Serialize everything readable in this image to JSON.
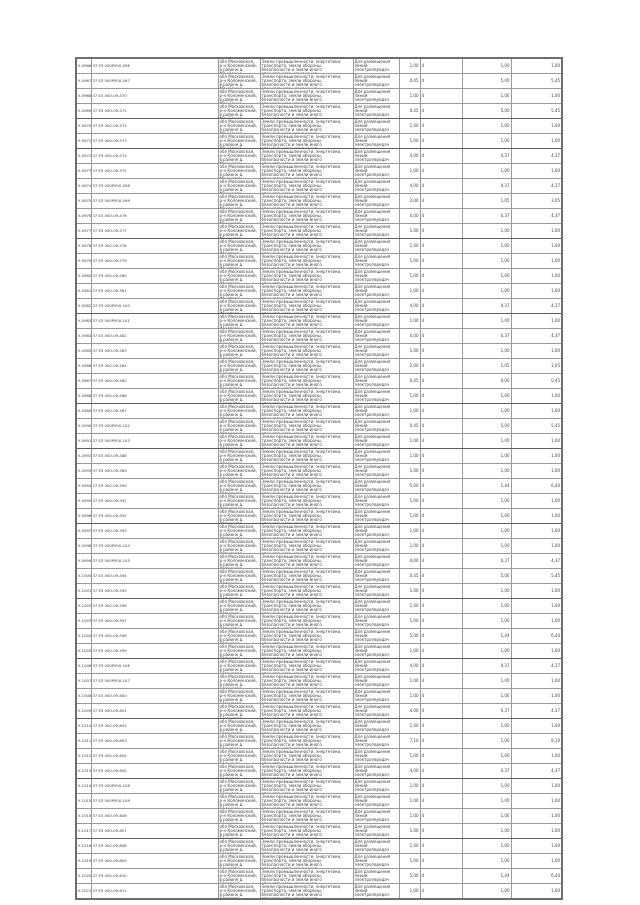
{
  "page": {
    "background": "#ffffff",
    "grid_color": "#9a9a9a",
    "outer_border_color": "#6e6e6e",
    "thick_divider_color": "#b0b0b0",
    "text_color": "#3c3c3c"
  },
  "table": {
    "columns": [
      {
        "key": "id",
        "label": "parcel-id"
      },
      {
        "key": "cn",
        "label": "cadastral-number"
      },
      {
        "key": "addr",
        "label": "location"
      },
      {
        "key": "cat",
        "label": "land-category"
      },
      {
        "key": "purp",
        "label": "permitted-use"
      },
      {
        "key": "n1",
        "label": "area-1"
      },
      {
        "key": "code",
        "label": "code"
      },
      {
        "key": "n2",
        "label": "area-2"
      },
      {
        "key": "n3",
        "label": "area-total"
      }
    ],
    "shared": {
      "address_prefix": "обл Московская, р-н Коломенский, в районе",
      "category": "Земли промышленности, энергетики, транспорта, земли обороны, безопасности и земли иного специального назначения",
      "purpose": "Для размещения линий электропередач"
    },
    "rows": [
      {
        "id": "У-0966",
        "cn": "37 ЕЗ 000РУ00-096",
        "village": "Мещёрино",
        "n1": "1,00",
        "code": "4",
        "n2": "1,00",
        "n3": "1,00",
        "tb": false
      },
      {
        "id": "У-0967",
        "cn": "37 ЕЗ 000РУ00-097",
        "village": "Мещёрино",
        "n1": "0,45",
        "code": "4",
        "n2": "5,00",
        "n3": "5,45",
        "tb": false
      },
      {
        "id": "У-0968",
        "cn": "37 ЕЗ 000-09-570",
        "village": "Мещёрино",
        "n1": "1,00",
        "code": "4",
        "n2": "1,00",
        "n3": "1,00",
        "tb": false
      },
      {
        "id": "У-0969",
        "cn": "37 ЕЗ 000-09-571",
        "village": "Мещёрино",
        "n1": "0,45",
        "code": "4",
        "n2": "5,00",
        "n3": "5,45",
        "tb": true
      },
      {
        "id": "У-0970",
        "cn": "37 ЕЗ 000-09-572",
        "village": "Мещёрино",
        "n1": "1,00",
        "code": "4",
        "n2": "1,00",
        "n3": "1,00",
        "tb": false
      },
      {
        "id": "У-0971",
        "cn": "37 ЕЗ 000-09-573",
        "village": "Мещёрино",
        "n1": "1,00",
        "code": "4",
        "n2": "1,00",
        "n3": "1,00",
        "tb": true
      },
      {
        "id": "У-0972",
        "cn": "37 ЕЗ 000-09-574",
        "village": "Мишуково",
        "n1": "4,00",
        "code": "4",
        "n2": "0,37",
        "n3": "4,37",
        "tb": false
      },
      {
        "id": "У-0973",
        "cn": "37 ЕЗ 000-09-575",
        "village": "Мишуково",
        "n1": "1,00",
        "code": "4",
        "n2": "1,00",
        "n3": "1,00",
        "tb": false
      },
      {
        "id": "У-0974",
        "cn": "37 ЕЗ 000РУ00-098",
        "village": "Мишуково",
        "n1": "4,00",
        "code": "4",
        "n2": "0,37",
        "n3": "4,37",
        "tb": false
      },
      {
        "id": "У-0975",
        "cn": "37 ЕЗ 000РУ00-099",
        "village": "Мишуково",
        "n1": "2,00",
        "code": "4",
        "n2": "1,05",
        "n3": "3,05",
        "tb": false
      },
      {
        "id": "У-0976",
        "cn": "37 ЕЗ 000-09-576",
        "village": "Мишуково",
        "n1": "4,00",
        "code": "4",
        "n2": "0,37",
        "n3": "4,37",
        "tb": false
      },
      {
        "id": "У-0977",
        "cn": "37 ЕЗ 000-09-577",
        "village": "Мишуково",
        "n1": "1,00",
        "code": "4",
        "n2": "1,00",
        "n3": "1,00",
        "tb": true
      },
      {
        "id": "У-0978",
        "cn": "37 ЕЗ 000-09-578",
        "village": "Игнатово",
        "n1": "1,00",
        "code": "4",
        "n2": "1,00",
        "n3": "1,00",
        "tb": false
      },
      {
        "id": "У-0979",
        "cn": "37 ЕЗ 000-09-579",
        "village": "Игнатово",
        "n1": "1,00",
        "code": "4",
        "n2": "1,00",
        "n3": "1,00",
        "tb": false
      },
      {
        "id": "У-0980",
        "cn": "37 ЕЗ 000-09-580",
        "village": "Игнатово",
        "n1": "1,00",
        "code": "4",
        "n2": "1,00",
        "n3": "1,00",
        "tb": false
      },
      {
        "id": "У-0981",
        "cn": "37 ЕЗ 000-09-581",
        "village": "Игнатово",
        "n1": "1,00",
        "code": "4",
        "n2": "1,00",
        "n3": "1,00",
        "tb": false
      },
      {
        "id": "У-0982",
        "cn": "37 ЕЗ 000РУ00-100",
        "village": "Игнатово",
        "n1": "4,00",
        "code": "4",
        "n2": "0,37",
        "n3": "4,37",
        "tb": true
      },
      {
        "id": "У-0983",
        "cn": "37 ЕЗ 000РУ00-101",
        "village": "Игнатово",
        "n1": "1,00",
        "code": "4",
        "n2": "1,00",
        "n3": "1,00",
        "tb": false
      },
      {
        "id": "У-0984",
        "cn": "37 ЕЗ 000-09-582",
        "village": "Тимирёво",
        "n1": "4,00",
        "code": "4",
        "n2": "0,37",
        "n3": "4,37",
        "tb": false
      },
      {
        "id": "У-0985",
        "cn": "37 ЕЗ 000-09-583",
        "village": "Тимирёво",
        "n1": "1,00",
        "code": "4",
        "n2": "1,00",
        "n3": "1,00",
        "tb": false
      },
      {
        "id": "У-0986",
        "cn": "37 ЕЗ 000-09-584",
        "village": "Тимирёво",
        "n1": "2,00",
        "code": "4",
        "n2": "1,05",
        "n3": "3,05",
        "tb": false
      },
      {
        "id": "У-0987",
        "cn": "37 ЕЗ 000-09-585",
        "village": "Тимирёво",
        "n1": "0,45",
        "code": "4",
        "n2": "0,00",
        "n3": "0,45",
        "tb": false
      },
      {
        "id": "У-0988",
        "cn": "37 ЕЗ 000-09-586",
        "village": "Тимирёво",
        "n1": "1,00",
        "code": "4",
        "n2": "1,00",
        "n3": "1,00",
        "tb": true
      },
      {
        "id": "У-0989",
        "cn": "37 ЕЗ 000-09-587",
        "village": "Апраксино",
        "n1": "1,00",
        "code": "4",
        "n2": "1,00",
        "n3": "1,00",
        "tb": false
      },
      {
        "id": "У-0990",
        "cn": "37 ЕЗ 000РУ00-102",
        "village": "Апраксино",
        "n1": "0,45",
        "code": "4",
        "n2": "5,00",
        "n3": "5,45",
        "tb": false
      },
      {
        "id": "У-0991",
        "cn": "37 ЕЗ 000РУ00-103",
        "village": "Апраксино",
        "n1": "1,00",
        "code": "4",
        "n2": "1,00",
        "n3": "1,00",
        "tb": true
      },
      {
        "id": "У-0992",
        "cn": "37 ЕЗ 000-09-588",
        "village": "Апраксино",
        "n1": "1,00",
        "code": "4",
        "n2": "1,00",
        "n3": "1,00",
        "tb": false
      },
      {
        "id": "У-0993",
        "cn": "37 ЕЗ 000-09-589",
        "village": "Апраксино",
        "n1": "1,00",
        "code": "4",
        "n2": "1,00",
        "n3": "1,00",
        "tb": false
      },
      {
        "id": "У-0994",
        "cn": "37 ЕЗ 000-09-590",
        "village": "Ратмирово",
        "n1": "5,00",
        "code": "4",
        "n2": "1,44",
        "n3": "6,44",
        "tb": false
      },
      {
        "id": "У-0995",
        "cn": "37 ЕЗ 000-09-591",
        "village": "Ратмирово",
        "n1": "1,00",
        "code": "4",
        "n2": "1,00",
        "n3": "1,00",
        "tb": false
      },
      {
        "id": "У-0996",
        "cn": "37 ЕЗ 000-09-592",
        "village": "Ратмирово",
        "n1": "1,00",
        "code": "4",
        "n2": "1,00",
        "n3": "1,00",
        "tb": true
      },
      {
        "id": "У-0997",
        "cn": "37 ЕЗ 000-09-593",
        "village": "Ратмирово",
        "n1": "1,00",
        "code": "4",
        "n2": "1,00",
        "n3": "1,00",
        "tb": false
      },
      {
        "id": "У-0998",
        "cn": "37 ЕЗ 000РУ00-104",
        "village": "Ратмирово",
        "n1": "1,00",
        "code": "4",
        "n2": "1,00",
        "n3": "1,00",
        "tb": false
      },
      {
        "id": "У-0999",
        "cn": "37 ЕЗ 000РУ00-105",
        "village": "Ратмирово",
        "n1": "4,00",
        "code": "4",
        "n2": "0,37",
        "n3": "4,37",
        "tb": false
      },
      {
        "id": "У-1000",
        "cn": "37 ЕЗ 000-09-594",
        "village": "Петухово",
        "n1": "0,45",
        "code": "4",
        "n2": "5,00",
        "n3": "5,45",
        "tb": false
      },
      {
        "id": "У-1001",
        "cn": "37 ЕЗ 000-09-595",
        "village": "Петухово",
        "n1": "1,00",
        "code": "4",
        "n2": "1,00",
        "n3": "1,00",
        "tb": true
      },
      {
        "id": "У-1002",
        "cn": "37 ЕЗ 000-09-596",
        "village": "Петухово",
        "n1": "1,00",
        "code": "4",
        "n2": "1,00",
        "n3": "1,00",
        "tb": false
      },
      {
        "id": "У-1003",
        "cn": "37 ЕЗ 000-09-597",
        "village": "Петухово",
        "n1": "1,00",
        "code": "4",
        "n2": "1,00",
        "n3": "1,00",
        "tb": false
      },
      {
        "id": "У-1004",
        "cn": "37 ЕЗ 000-09-598",
        "village": "Петухово",
        "n1": "5,00",
        "code": "4",
        "n2": "1,44",
        "n3": "6,44",
        "tb": false
      },
      {
        "id": "У-1005",
        "cn": "37 ЕЗ 000-09-599",
        "village": "Петухово",
        "n1": "1,00",
        "code": "4",
        "n2": "1,00",
        "n3": "1,00",
        "tb": true
      },
      {
        "id": "У-1006",
        "cn": "37 ЕЗ 000РУ00-106",
        "village": "Гаврилово",
        "n1": "4,00",
        "code": "4",
        "n2": "0,37",
        "n3": "4,37",
        "tb": false
      },
      {
        "id": "У-1007",
        "cn": "37 ЕЗ 000РУ00-107",
        "village": "Гаврилово",
        "n1": "1,00",
        "code": "4",
        "n2": "1,00",
        "n3": "1,00",
        "tb": false
      },
      {
        "id": "У-1008",
        "cn": "37 ЕЗ 000-09-600",
        "village": "Гаврилово",
        "n1": "1,00",
        "code": "4",
        "n2": "1,00",
        "n3": "1,00",
        "tb": false
      },
      {
        "id": "У-1009",
        "cn": "37 ЕЗ 000-09-601",
        "village": "Гаврилово",
        "n1": "4,00",
        "code": "4",
        "n2": "0,37",
        "n3": "4,37",
        "tb": true
      },
      {
        "id": "У-1010",
        "cn": "37 ЕЗ 000-09-602",
        "village": "Гаврилово",
        "n1": "1,00",
        "code": "4",
        "n2": "1,00",
        "n3": "1,00",
        "tb": false
      },
      {
        "id": "У-1011",
        "cn": "37 ЕЗ 000-09-603",
        "village": "Гришино",
        "n1": "7,10",
        "code": "4",
        "n2": "1,00",
        "n3": "8,10",
        "tb": false
      },
      {
        "id": "У-1012",
        "cn": "37 ЕЗ 000-09-604",
        "village": "Гришино",
        "n1": "1,00",
        "code": "4",
        "n2": "1,00",
        "n3": "1,00",
        "tb": false
      },
      {
        "id": "У-1013",
        "cn": "37 ЕЗ 000-09-605",
        "village": "Гришино",
        "n1": "4,00",
        "code": "4",
        "n2": "0,37",
        "n3": "4,37",
        "tb": true
      },
      {
        "id": "У-1014",
        "cn": "37 ЕЗ 000РУ00-108",
        "village": "Гришино",
        "n1": "1,00",
        "code": "4",
        "n2": "1,00",
        "n3": "1,00",
        "tb": false
      },
      {
        "id": "У-1015",
        "cn": "37 ЕЗ 000РУ00-109",
        "village": "Гришино",
        "n1": "1,00",
        "code": "4",
        "n2": "1,00",
        "n3": "1,00",
        "tb": false
      },
      {
        "id": "У-1016",
        "cn": "37 ЕЗ 000-09-606",
        "village": "Гришино",
        "n1": "1,00",
        "code": "4",
        "n2": "1,00",
        "n3": "1,00",
        "tb": false
      },
      {
        "id": "У-1017",
        "cn": "37 ЕЗ 000-09-607",
        "village": "Гришино",
        "n1": "1,00",
        "code": "4",
        "n2": "1,00",
        "n3": "1,00",
        "tb": true
      },
      {
        "id": "У-1018",
        "cn": "37 ЕЗ 000-09-608",
        "village": "Горелово",
        "n1": "1,00",
        "code": "4",
        "n2": "1,00",
        "n3": "1,00",
        "tb": false
      },
      {
        "id": "У-1019",
        "cn": "37 ЕЗ 000-09-609",
        "village": "Горелово",
        "n1": "1,00",
        "code": "4",
        "n2": "1,00",
        "n3": "1,00",
        "tb": false
      },
      {
        "id": "У-1020",
        "cn": "37 ЕЗ 000-09-610",
        "village": "Горелово",
        "n1": "5,00",
        "code": "4",
        "n2": "1,44",
        "n3": "6,44",
        "tb": false
      },
      {
        "id": "У-1021",
        "cn": "37 ЕЗ 000-09-611",
        "village": "Горелово",
        "n1": "1,00",
        "code": "4",
        "n2": "1,00",
        "n3": "1,00",
        "tb": false
      }
    ]
  }
}
